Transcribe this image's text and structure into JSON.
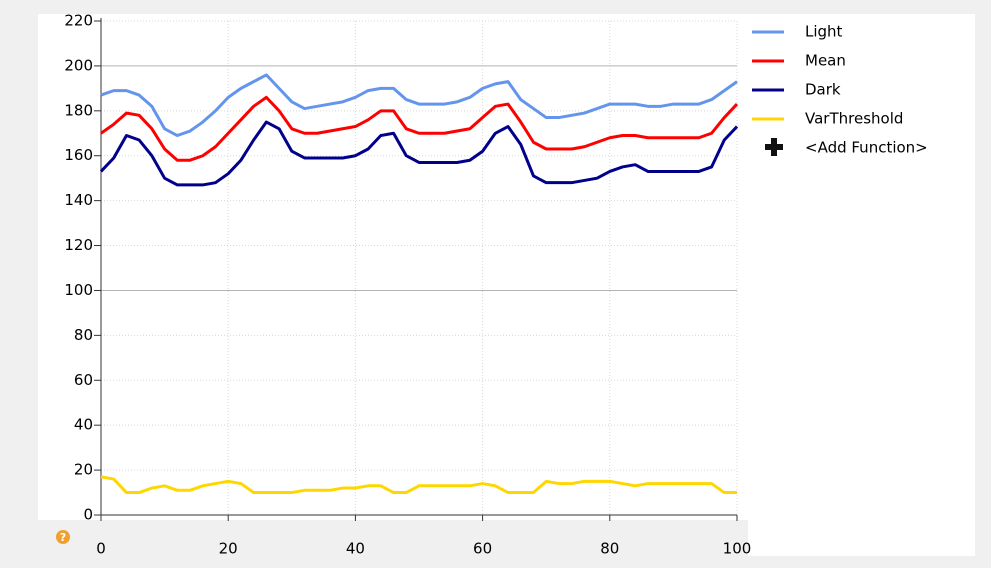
{
  "chart_data": {
    "type": "line",
    "x": [
      0,
      2,
      4,
      6,
      8,
      10,
      12,
      14,
      16,
      18,
      20,
      22,
      24,
      26,
      28,
      30,
      32,
      34,
      36,
      38,
      40,
      42,
      44,
      46,
      48,
      50,
      52,
      54,
      56,
      58,
      60,
      62,
      64,
      66,
      68,
      70,
      72,
      74,
      76,
      78,
      80,
      82,
      84,
      86,
      88,
      90,
      92,
      94,
      96,
      98,
      100
    ],
    "series": [
      {
        "name": "Light",
        "color": "#6495ed",
        "values": [
          187,
          189,
          189,
          187,
          182,
          172,
          169,
          171,
          175,
          180,
          186,
          190,
          193,
          196,
          190,
          184,
          181,
          182,
          183,
          184,
          186,
          189,
          190,
          190,
          185,
          183,
          183,
          183,
          184,
          186,
          190,
          192,
          193,
          185,
          181,
          177,
          177,
          178,
          179,
          181,
          183,
          183,
          183,
          182,
          182,
          183,
          183,
          183,
          185,
          189,
          193
        ]
      },
      {
        "name": "Mean",
        "color": "#ff0000",
        "values": [
          170,
          174,
          179,
          178,
          172,
          163,
          158,
          158,
          160,
          164,
          170,
          176,
          182,
          186,
          180,
          172,
          170,
          170,
          171,
          172,
          173,
          176,
          180,
          180,
          172,
          170,
          170,
          170,
          171,
          172,
          177,
          182,
          183,
          175,
          166,
          163,
          163,
          163,
          164,
          166,
          168,
          169,
          169,
          168,
          168,
          168,
          168,
          168,
          170,
          177,
          183
        ]
      },
      {
        "name": "Dark",
        "color": "#00008b",
        "values": [
          153,
          159,
          169,
          167,
          160,
          150,
          147,
          147,
          147,
          148,
          152,
          158,
          167,
          175,
          172,
          162,
          159,
          159,
          159,
          159,
          160,
          163,
          169,
          170,
          160,
          157,
          157,
          157,
          157,
          158,
          162,
          170,
          173,
          165,
          151,
          148,
          148,
          148,
          149,
          150,
          153,
          155,
          156,
          153,
          153,
          153,
          153,
          153,
          155,
          167,
          173
        ]
      },
      {
        "name": "VarThreshold",
        "color": "#ffd700",
        "values": [
          17,
          16,
          10,
          10,
          12,
          13,
          11,
          11,
          13,
          14,
          15,
          14,
          10,
          10,
          10,
          10,
          11,
          11,
          11,
          12,
          12,
          13,
          13,
          10,
          10,
          13,
          13,
          13,
          13,
          13,
          14,
          13,
          10,
          10,
          10,
          15,
          14,
          14,
          15,
          15,
          15,
          14,
          13,
          14,
          14,
          14,
          14,
          14,
          14,
          10,
          10
        ]
      }
    ],
    "xlim": [
      0,
      100
    ],
    "xticks": [
      0,
      20,
      40,
      60,
      80,
      100
    ],
    "ylim": [
      0,
      220
    ],
    "yticks": [
      0,
      20,
      40,
      60,
      80,
      100,
      120,
      140,
      160,
      180,
      200,
      220
    ],
    "grid": true
  },
  "legend_extra": "<Add Function>",
  "help_icon": "?"
}
